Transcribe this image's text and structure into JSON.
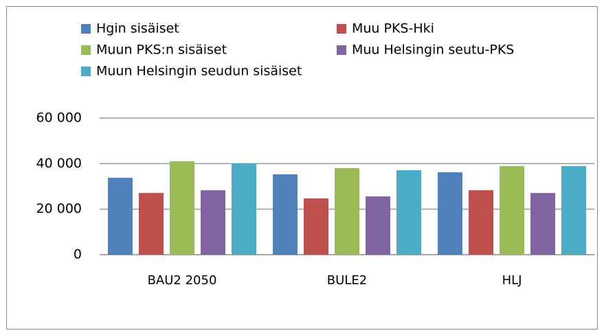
{
  "chart_data": {
    "type": "bar",
    "categories": [
      "BAU2 2050",
      "BULE2",
      "HLJ"
    ],
    "series": [
      {
        "name": "Hgin sisäiset",
        "color": "#4f81bd",
        "values": [
          33800,
          35300,
          36200
        ]
      },
      {
        "name": "Muu PKS-Hki",
        "color": "#c0504d",
        "values": [
          27100,
          24700,
          28300
        ]
      },
      {
        "name": "Muun PKS:n sisäiset",
        "color": "#9bbb59",
        "values": [
          41000,
          38000,
          38900
        ]
      },
      {
        "name": "Muu Helsingin seutu-PKS",
        "color": "#8064a2",
        "values": [
          28300,
          25600,
          27100
        ]
      },
      {
        "name": "Muun Helsingin seudun sisäiset",
        "color": "#4bacc6",
        "values": [
          40100,
          37100,
          38900
        ]
      }
    ],
    "ylim": [
      0,
      60000
    ],
    "yticks": [
      {
        "value": 0,
        "label": "0"
      },
      {
        "value": 20000,
        "label": "20 000"
      },
      {
        "value": 40000,
        "label": "40 000"
      },
      {
        "value": 60000,
        "label": "60 000"
      }
    ],
    "grid": true,
    "legend": "top"
  }
}
